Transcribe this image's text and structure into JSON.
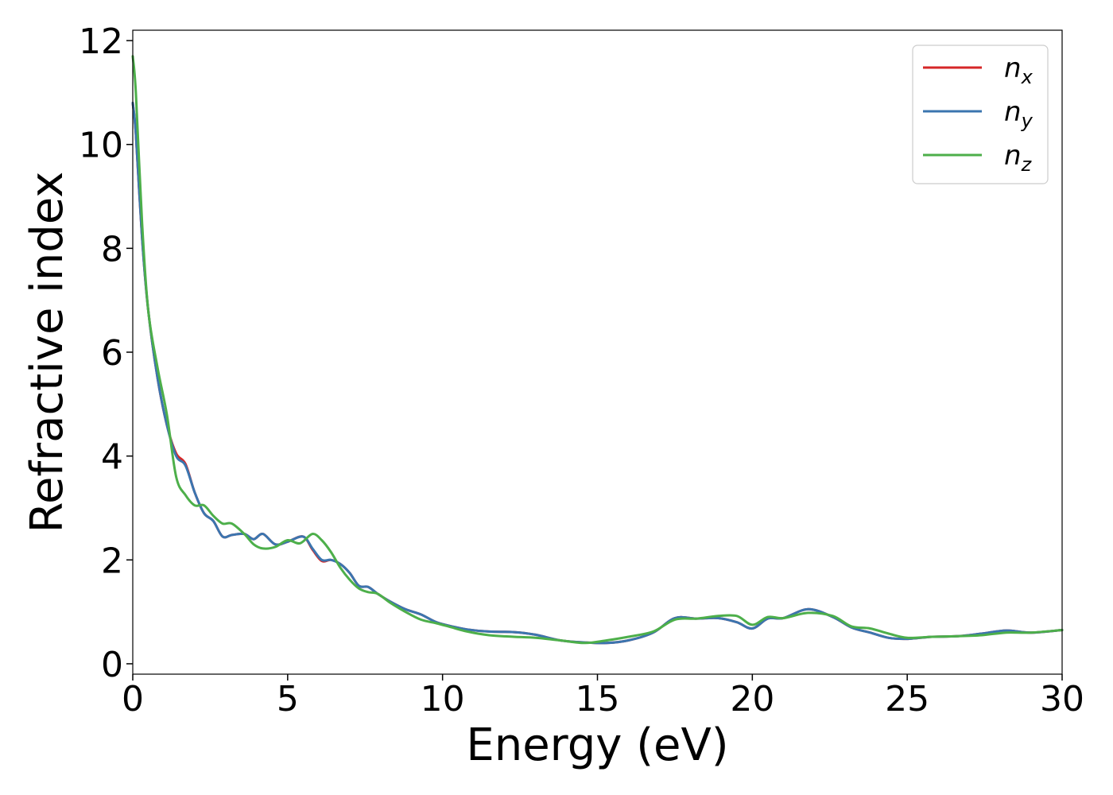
{
  "chart_data": {
    "type": "line",
    "title": "",
    "xlabel": "Energy (eV)",
    "ylabel": "Refractive index",
    "xlim": [
      0,
      30
    ],
    "ylim": [
      -0.2,
      12.2
    ],
    "xticks": [
      0,
      5,
      10,
      15,
      20,
      25,
      30
    ],
    "yticks": [
      0,
      2,
      4,
      6,
      8,
      10,
      12
    ],
    "grid": false,
    "legend": {
      "placement": "top-right"
    },
    "series": [
      {
        "name": "n",
        "subscript": "x",
        "color": "#d62728",
        "x": [
          0,
          0.1,
          0.3,
          0.5,
          0.8,
          1.1,
          1.4,
          1.7,
          2.0,
          2.3,
          2.6,
          2.9,
          3.2,
          3.6,
          3.9,
          4.2,
          4.6,
          5.0,
          5.5,
          5.8,
          6.1,
          6.4,
          6.7,
          7.0,
          7.3,
          7.6,
          7.9,
          8.3,
          8.8,
          9.3,
          9.8,
          10.3,
          10.8,
          11.5,
          12.3,
          13.0,
          13.8,
          14.6,
          15.3,
          16.0,
          16.8,
          17.5,
          18.2,
          18.9,
          19.5,
          20.0,
          20.5,
          21.0,
          21.8,
          22.6,
          23.2,
          23.8,
          24.4,
          25.0,
          25.8,
          26.6,
          27.4,
          28.2,
          29.0,
          30.0
        ],
        "y": [
          10.8,
          10.2,
          8.2,
          6.8,
          5.5,
          4.6,
          4.05,
          3.85,
          3.3,
          2.9,
          2.75,
          2.45,
          2.48,
          2.5,
          2.4,
          2.5,
          2.3,
          2.35,
          2.45,
          2.2,
          1.98,
          2.0,
          1.92,
          1.75,
          1.5,
          1.48,
          1.35,
          1.2,
          1.05,
          0.95,
          0.8,
          0.72,
          0.66,
          0.62,
          0.61,
          0.56,
          0.45,
          0.41,
          0.4,
          0.45,
          0.6,
          0.88,
          0.87,
          0.88,
          0.8,
          0.68,
          0.87,
          0.88,
          1.05,
          0.9,
          0.7,
          0.6,
          0.5,
          0.48,
          0.52,
          0.53,
          0.58,
          0.64,
          0.6,
          0.65
        ]
      },
      {
        "name": "n",
        "subscript": "y",
        "color": "#3b75af",
        "x": [
          0,
          0.1,
          0.3,
          0.5,
          0.8,
          1.1,
          1.4,
          1.7,
          2.0,
          2.3,
          2.6,
          2.9,
          3.2,
          3.6,
          3.9,
          4.2,
          4.6,
          5.0,
          5.5,
          5.8,
          6.1,
          6.4,
          6.7,
          7.0,
          7.3,
          7.6,
          7.9,
          8.3,
          8.8,
          9.3,
          9.8,
          10.3,
          10.8,
          11.5,
          12.3,
          13.0,
          13.8,
          14.6,
          15.3,
          16.0,
          16.8,
          17.5,
          18.2,
          18.9,
          19.5,
          20.0,
          20.5,
          21.0,
          21.8,
          22.6,
          23.2,
          23.8,
          24.4,
          25.0,
          25.8,
          26.6,
          27.4,
          28.2,
          29.0,
          30.0
        ],
        "y": [
          10.8,
          10.2,
          8.2,
          6.8,
          5.5,
          4.6,
          4.0,
          3.82,
          3.3,
          2.9,
          2.75,
          2.45,
          2.48,
          2.5,
          2.4,
          2.5,
          2.3,
          2.35,
          2.45,
          2.22,
          2.0,
          2.0,
          1.92,
          1.75,
          1.5,
          1.48,
          1.35,
          1.2,
          1.05,
          0.95,
          0.8,
          0.72,
          0.66,
          0.62,
          0.61,
          0.56,
          0.45,
          0.41,
          0.4,
          0.45,
          0.6,
          0.88,
          0.87,
          0.88,
          0.8,
          0.68,
          0.87,
          0.88,
          1.05,
          0.9,
          0.7,
          0.6,
          0.5,
          0.48,
          0.52,
          0.53,
          0.58,
          0.64,
          0.6,
          0.65
        ]
      },
      {
        "name": "n",
        "subscript": "z",
        "color": "#4daf4a",
        "x": [
          0,
          0.1,
          0.3,
          0.5,
          0.8,
          1.1,
          1.4,
          1.7,
          2.0,
          2.3,
          2.6,
          2.9,
          3.2,
          3.6,
          3.9,
          4.2,
          4.6,
          5.0,
          5.4,
          5.8,
          6.1,
          6.4,
          6.7,
          7.0,
          7.3,
          7.6,
          7.9,
          8.3,
          8.8,
          9.3,
          9.8,
          10.3,
          10.8,
          11.5,
          12.3,
          13.0,
          13.8,
          14.6,
          15.3,
          16.0,
          16.8,
          17.5,
          18.2,
          18.9,
          19.5,
          20.0,
          20.5,
          21.0,
          21.8,
          22.6,
          23.2,
          23.8,
          24.4,
          25.0,
          25.8,
          26.6,
          27.4,
          28.2,
          29.0,
          30.0
        ],
        "y": [
          11.7,
          11.0,
          8.5,
          6.8,
          5.7,
          4.8,
          3.6,
          3.25,
          3.05,
          3.05,
          2.85,
          2.7,
          2.7,
          2.5,
          2.3,
          2.22,
          2.25,
          2.38,
          2.32,
          2.5,
          2.38,
          2.15,
          1.85,
          1.62,
          1.45,
          1.38,
          1.35,
          1.18,
          1.0,
          0.85,
          0.78,
          0.7,
          0.62,
          0.55,
          0.52,
          0.5,
          0.45,
          0.4,
          0.45,
          0.52,
          0.62,
          0.85,
          0.87,
          0.92,
          0.92,
          0.75,
          0.9,
          0.88,
          0.98,
          0.92,
          0.72,
          0.68,
          0.58,
          0.5,
          0.52,
          0.53,
          0.55,
          0.6,
          0.6,
          0.65
        ]
      }
    ]
  }
}
